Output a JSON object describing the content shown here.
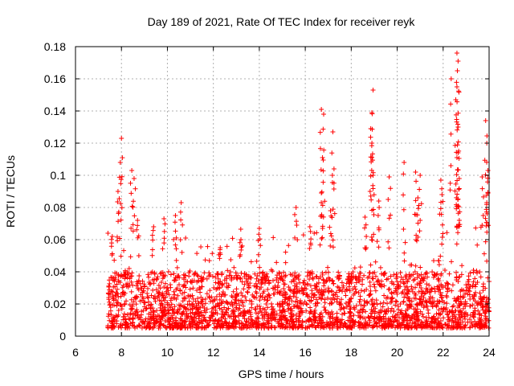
{
  "chart_data": {
    "type": "scatter",
    "title": "Day 189 of 2021, Rate Of TEC Index for receiver reyk",
    "xlabel": "GPS time / hours",
    "ylabel": "ROTI / TECUs",
    "xlim": [
      6,
      24
    ],
    "ylim": [
      0,
      0.18
    ],
    "xticks": [
      6,
      8,
      10,
      12,
      14,
      16,
      18,
      20,
      22,
      24
    ],
    "xtick_labels": [
      "6",
      "8",
      "10",
      "12",
      "14",
      "16",
      "18",
      "20",
      "22",
      "24"
    ],
    "yticks": [
      0,
      0.02,
      0.04,
      0.06,
      0.08,
      0.1,
      0.12,
      0.14,
      0.16,
      0.18
    ],
    "ytick_labels": [
      "0",
      "0.02",
      "0.04",
      "0.06",
      "0.08",
      "0.1",
      "0.12",
      "0.14",
      "0.16",
      "0.18"
    ],
    "grid": true,
    "marker": "+",
    "color": "#ff0000",
    "series": [
      {
        "name": "ROTI",
        "x_range": [
          7.4,
          24.0
        ],
        "typical_y_range": [
          0.005,
          0.04
        ],
        "spikes": [
          {
            "x": 7.6,
            "y": 0.062
          },
          {
            "x": 7.85,
            "y": 0.09
          },
          {
            "x": 7.95,
            "y": 0.108
          },
          {
            "x": 8.0,
            "y": 0.123
          },
          {
            "x": 8.45,
            "y": 0.103
          },
          {
            "x": 8.55,
            "y": 0.098
          },
          {
            "x": 8.7,
            "y": 0.072
          },
          {
            "x": 9.4,
            "y": 0.068
          },
          {
            "x": 9.85,
            "y": 0.073
          },
          {
            "x": 10.35,
            "y": 0.075
          },
          {
            "x": 10.6,
            "y": 0.083
          },
          {
            "x": 12.3,
            "y": 0.055
          },
          {
            "x": 13.2,
            "y": 0.06
          },
          {
            "x": 14.0,
            "y": 0.067
          },
          {
            "x": 15.6,
            "y": 0.08
          },
          {
            "x": 16.2,
            "y": 0.068
          },
          {
            "x": 16.7,
            "y": 0.141
          },
          {
            "x": 16.8,
            "y": 0.138
          },
          {
            "x": 16.75,
            "y": 0.111
          },
          {
            "x": 16.7,
            "y": 0.089
          },
          {
            "x": 17.2,
            "y": 0.127
          },
          {
            "x": 17.25,
            "y": 0.104
          },
          {
            "x": 17.1,
            "y": 0.078
          },
          {
            "x": 18.6,
            "y": 0.074
          },
          {
            "x": 18.95,
            "y": 0.153
          },
          {
            "x": 18.9,
            "y": 0.139
          },
          {
            "x": 18.85,
            "y": 0.129
          },
          {
            "x": 18.9,
            "y": 0.12
          },
          {
            "x": 18.95,
            "y": 0.1
          },
          {
            "x": 19.2,
            "y": 0.084
          },
          {
            "x": 19.65,
            "y": 0.099
          },
          {
            "x": 20.3,
            "y": 0.108
          },
          {
            "x": 20.8,
            "y": 0.102
          },
          {
            "x": 21.0,
            "y": 0.1
          },
          {
            "x": 20.9,
            "y": 0.086
          },
          {
            "x": 21.9,
            "y": 0.097
          },
          {
            "x": 21.95,
            "y": 0.088
          },
          {
            "x": 22.35,
            "y": 0.16
          },
          {
            "x": 22.6,
            "y": 0.176
          },
          {
            "x": 22.65,
            "y": 0.171
          },
          {
            "x": 22.62,
            "y": 0.165
          },
          {
            "x": 22.6,
            "y": 0.155
          },
          {
            "x": 22.55,
            "y": 0.147
          },
          {
            "x": 22.65,
            "y": 0.13
          },
          {
            "x": 22.6,
            "y": 0.111
          },
          {
            "x": 22.7,
            "y": 0.098
          },
          {
            "x": 22.65,
            "y": 0.081
          },
          {
            "x": 23.7,
            "y": 0.099
          },
          {
            "x": 23.85,
            "y": 0.134
          },
          {
            "x": 23.9,
            "y": 0.12
          },
          {
            "x": 23.95,
            "y": 0.103
          },
          {
            "x": 23.9,
            "y": 0.083
          }
        ]
      }
    ]
  }
}
